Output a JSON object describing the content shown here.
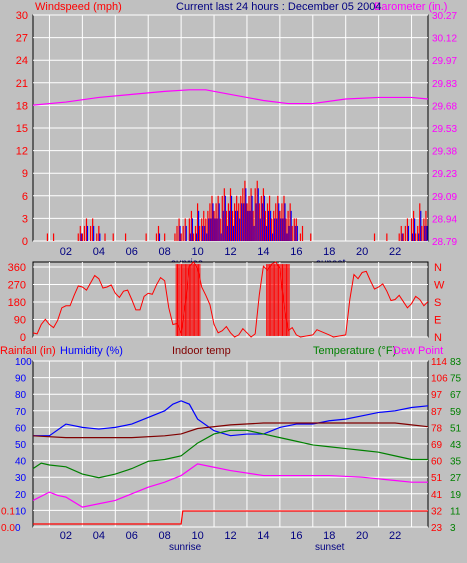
{
  "colors": {
    "wind": "#ff0000",
    "gust": "#0000ff",
    "barometer": "#ff00ff",
    "direction": "#ff0000",
    "humidity": "#0000ff",
    "indoor": "#800000",
    "temperature": "#008000",
    "dewpoint": "#ff00ff",
    "rainfall": "#ff0000",
    "background": "#c0c0c0",
    "plot": "#c0c0c0",
    "grid": "#ffffff"
  },
  "header": {
    "title": "Current last 24 hours : December 05 2004"
  },
  "chart_data": [
    {
      "type": "bar",
      "ylabel": "Windspeed (mph)",
      "y2label": "Barometer (in.)",
      "left_ticks": [
        "30",
        "27",
        "24",
        "21",
        "18",
        "15",
        "12",
        "9",
        "6",
        "3",
        "0"
      ],
      "right_ticks": [
        "30.27",
        "30.12",
        "29.97",
        "29.83",
        "29.68",
        "29.53",
        "29.38",
        "29.23",
        "29.09",
        "28.94",
        "28.79"
      ],
      "x_ticks": [
        "02",
        "04",
        "06",
        "08",
        "10",
        "12",
        "14",
        "16",
        "18",
        "20",
        "22"
      ],
      "annotations": [
        "sunrise",
        "sunset"
      ],
      "ylim": [
        0,
        30
      ],
      "y2lim": [
        28.79,
        30.27
      ],
      "xlim": [
        0,
        24
      ],
      "wind_activity": [
        [
          0,
          0
        ],
        [
          0.5,
          1
        ],
        [
          1,
          1
        ],
        [
          1.5,
          0
        ],
        [
          2,
          0
        ],
        [
          2.5,
          2
        ],
        [
          3,
          3
        ],
        [
          3.5,
          3
        ],
        [
          4,
          2
        ],
        [
          4.5,
          1
        ],
        [
          5,
          0
        ],
        [
          5.5,
          1
        ],
        [
          6,
          0
        ],
        [
          6.5,
          1
        ],
        [
          7,
          0
        ],
        [
          7.5,
          2
        ],
        [
          8,
          1
        ],
        [
          8.5,
          3
        ],
        [
          9,
          3
        ],
        [
          9.5,
          4
        ],
        [
          10,
          5
        ],
        [
          10.5,
          6
        ],
        [
          11,
          6
        ],
        [
          11.5,
          7
        ],
        [
          12,
          7
        ],
        [
          12.5,
          8
        ],
        [
          13,
          7
        ],
        [
          13.5,
          8
        ],
        [
          14,
          7
        ],
        [
          14.5,
          6
        ],
        [
          15,
          6
        ],
        [
          15.5,
          5
        ],
        [
          16,
          3
        ],
        [
          16.5,
          1
        ],
        [
          17,
          0
        ],
        [
          18,
          0
        ],
        [
          19,
          0
        ],
        [
          20,
          0
        ],
        [
          20.5,
          1
        ],
        [
          21,
          0
        ],
        [
          21.5,
          1
        ],
        [
          22,
          2
        ],
        [
          22.5,
          3
        ],
        [
          23,
          4
        ],
        [
          23.5,
          5
        ]
      ],
      "barometer": [
        [
          0,
          29.68
        ],
        [
          2,
          29.7
        ],
        [
          4,
          29.73
        ],
        [
          6,
          29.75
        ],
        [
          8,
          29.77
        ],
        [
          9.5,
          29.78
        ],
        [
          10.5,
          29.78
        ],
        [
          12,
          29.75
        ],
        [
          14,
          29.71
        ],
        [
          15.5,
          29.69
        ],
        [
          17,
          29.69
        ],
        [
          19,
          29.72
        ],
        [
          21,
          29.73
        ],
        [
          23,
          29.73
        ],
        [
          24,
          29.72
        ]
      ]
    },
    {
      "type": "line",
      "left_ticks": [
        "360",
        "270",
        "180",
        "90",
        "0"
      ],
      "right_ticks": [
        "N",
        "W",
        "S",
        "E",
        "N"
      ],
      "ylim": [
        0,
        360
      ],
      "xlim": [
        0,
        24
      ],
      "direction": [
        [
          0,
          20
        ],
        [
          0.5,
          60
        ],
        [
          1,
          60
        ],
        [
          1.5,
          80
        ],
        [
          2,
          150
        ],
        [
          2.5,
          200
        ],
        [
          3,
          240
        ],
        [
          3.5,
          260
        ],
        [
          4,
          280
        ],
        [
          4.5,
          240
        ],
        [
          5,
          210
        ],
        [
          5.5,
          220
        ],
        [
          6,
          180
        ],
        [
          6.5,
          130
        ],
        [
          7,
          210
        ],
        [
          7.5,
          250
        ],
        [
          8,
          270
        ],
        [
          8.5,
          60
        ],
        [
          9,
          20
        ],
        [
          9.5,
          340
        ],
        [
          10,
          330
        ],
        [
          10.5,
          200
        ],
        [
          11,
          60
        ],
        [
          11.5,
          30
        ],
        [
          12,
          20
        ],
        [
          12.5,
          10
        ],
        [
          13,
          20
        ],
        [
          13.5,
          15
        ],
        [
          14,
          340
        ],
        [
          14.5,
          350
        ],
        [
          15,
          330
        ],
        [
          15.5,
          30
        ],
        [
          16,
          10
        ],
        [
          17,
          10
        ],
        [
          18,
          10
        ],
        [
          19,
          10
        ],
        [
          19.5,
          300
        ],
        [
          20,
          310
        ],
        [
          20.5,
          270
        ],
        [
          21,
          240
        ],
        [
          21.5,
          220
        ],
        [
          22,
          180
        ],
        [
          22.5,
          170
        ],
        [
          23,
          160
        ],
        [
          23.5,
          180
        ],
        [
          24,
          170
        ]
      ]
    },
    {
      "type": "line",
      "series_labels": [
        "Rainfall (in)",
        "Humidity (%)",
        "Indoor temp",
        "Temperature (°F)",
        "Dew Point"
      ],
      "rain_ticks": [
        "0.1",
        "0.0"
      ],
      "humidity_ticks": [
        "100",
        "90",
        "80",
        "70",
        "60",
        "50",
        "40",
        "30",
        "20",
        "10",
        "0"
      ],
      "temp_ticks": [
        "114",
        "106",
        "97",
        "87",
        "78",
        "69",
        "60",
        "51",
        "41",
        "32",
        "23"
      ],
      "dew_ticks": [
        "83",
        "75",
        "67",
        "59",
        "51",
        "43",
        "35",
        "27",
        "19",
        "11",
        "3"
      ],
      "x_ticks": [
        "02",
        "04",
        "06",
        "08",
        "10",
        "12",
        "14",
        "16",
        "18",
        "20",
        "22"
      ],
      "annotations": [
        "sunrise",
        "sunset"
      ],
      "humidity_lim": [
        0,
        100
      ],
      "temp_lim": [
        23,
        114
      ],
      "xlim": [
        0,
        24
      ],
      "series": [
        {
          "name": "Humidity (%)",
          "values": [
            [
              0,
              55
            ],
            [
              1,
              55
            ],
            [
              2,
              62
            ],
            [
              3,
              60
            ],
            [
              4,
              59
            ],
            [
              5,
              60
            ],
            [
              6,
              62
            ],
            [
              7,
              66
            ],
            [
              8,
              70
            ],
            [
              8.5,
              74
            ],
            [
              9,
              76
            ],
            [
              9.5,
              74
            ],
            [
              10,
              65
            ],
            [
              11,
              58
            ],
            [
              12,
              55
            ],
            [
              13,
              56
            ],
            [
              14,
              56
            ],
            [
              15,
              60
            ],
            [
              16,
              62
            ],
            [
              17,
              62
            ],
            [
              18,
              64
            ],
            [
              19,
              65
            ],
            [
              20,
              67
            ],
            [
              21,
              69
            ],
            [
              22,
              70
            ],
            [
              23,
              72
            ],
            [
              24,
              73
            ]
          ]
        },
        {
          "name": "Indoor temp",
          "values": [
            [
              0,
              73
            ],
            [
              2,
              72
            ],
            [
              4,
              72
            ],
            [
              6,
              72
            ],
            [
              8,
              73
            ],
            [
              9,
              74
            ],
            [
              10,
              77
            ],
            [
              12,
              79
            ],
            [
              14,
              80
            ],
            [
              16,
              80
            ],
            [
              18,
              80
            ],
            [
              20,
              80
            ],
            [
              22,
              80
            ],
            [
              23,
              79
            ],
            [
              24,
              78
            ]
          ]
        },
        {
          "name": "Temperature (°F)",
          "values": [
            [
              0,
              55
            ],
            [
              0.5,
              58
            ],
            [
              1,
              57
            ],
            [
              2,
              56
            ],
            [
              3,
              52
            ],
            [
              4,
              50
            ],
            [
              5,
              52
            ],
            [
              6,
              55
            ],
            [
              7,
              59
            ],
            [
              8,
              60
            ],
            [
              9,
              62
            ],
            [
              10,
              69
            ],
            [
              11,
              74
            ],
            [
              12,
              76
            ],
            [
              13,
              76
            ],
            [
              14,
              74
            ],
            [
              15,
              72
            ],
            [
              16,
              70
            ],
            [
              17,
              68
            ],
            [
              18,
              67
            ],
            [
              19,
              66
            ],
            [
              20,
              65
            ],
            [
              21,
              64
            ],
            [
              22,
              62
            ],
            [
              23,
              60
            ],
            [
              24,
              60
            ]
          ]
        },
        {
          "name": "Dew Point",
          "values": [
            [
              0,
              16
            ],
            [
              1,
              21
            ],
            [
              1.5,
              19
            ],
            [
              2,
              18
            ],
            [
              3,
              12
            ],
            [
              4,
              14
            ],
            [
              5,
              16
            ],
            [
              6,
              20
            ],
            [
              7,
              24
            ],
            [
              8,
              27
            ],
            [
              9,
              31
            ],
            [
              10,
              38
            ],
            [
              11,
              36
            ],
            [
              12,
              34
            ],
            [
              14,
              31
            ],
            [
              16,
              31
            ],
            [
              18,
              31
            ],
            [
              20,
              30
            ],
            [
              22,
              28
            ],
            [
              23,
              27
            ],
            [
              24,
              27
            ]
          ]
        },
        {
          "name": "Rainfall (in)",
          "values": [
            [
              0,
              0
            ],
            [
              9,
              0
            ],
            [
              9.1,
              0.1
            ],
            [
              24,
              0.1
            ]
          ]
        }
      ]
    }
  ]
}
